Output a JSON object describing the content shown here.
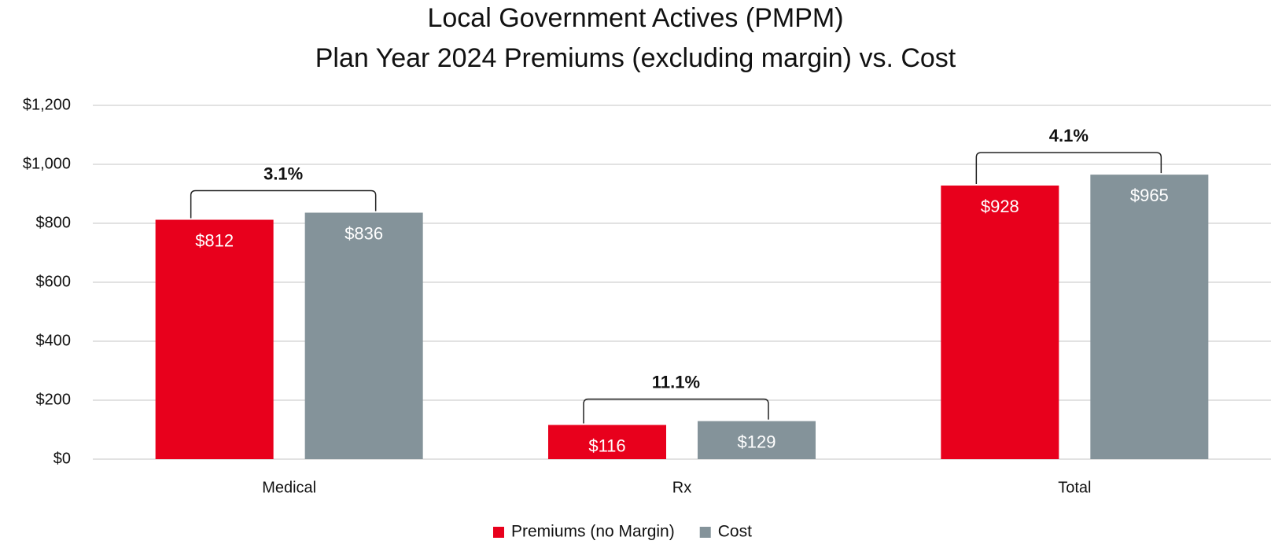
{
  "chart_data": {
    "type": "bar",
    "title": [
      "Local Government Actives (PMPM)",
      "Plan Year 2024 Premiums (excluding margin) vs. Cost"
    ],
    "categories": [
      "Medical",
      "Rx",
      "Total"
    ],
    "series": [
      {
        "name": "Premiums (no Margin)",
        "color": "#e8001c",
        "values": [
          812,
          116,
          928
        ],
        "value_labels": [
          "$812",
          "$116",
          "$928"
        ]
      },
      {
        "name": "Cost",
        "color": "#84939a",
        "values": [
          836,
          129,
          965
        ],
        "value_labels": [
          "$836",
          "$129",
          "$965"
        ]
      }
    ],
    "annotations": [
      "3.1%",
      "11.1%",
      "4.1%"
    ],
    "ylim": [
      0,
      1200
    ],
    "yticks": [
      {
        "value": 0,
        "label": "$0"
      },
      {
        "value": 200,
        "label": "$200"
      },
      {
        "value": 400,
        "label": "$400"
      },
      {
        "value": 600,
        "label": "$600"
      },
      {
        "value": 800,
        "label": "$800"
      },
      {
        "value": 1000,
        "label": "$1,000"
      },
      {
        "value": 1200,
        "label": "$1,200"
      }
    ],
    "grid": true,
    "legend": "bottom"
  }
}
